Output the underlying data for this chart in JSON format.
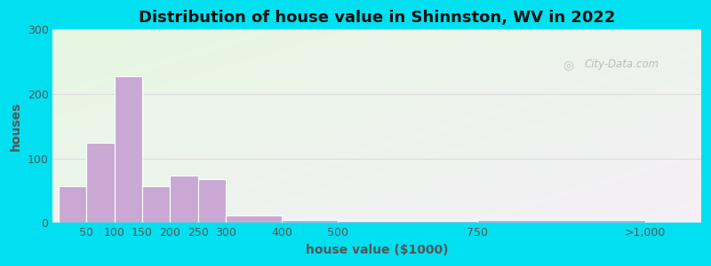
{
  "title": "Distribution of house value in Shinnston, WV in 2022",
  "xlabel": "house value ($1000)",
  "ylabel": "houses",
  "bar_color": "#c9a8d4",
  "bar_edge_color": "#ffffff",
  "background_outer": "#00e0f0",
  "ylim": [
    0,
    300
  ],
  "yticks": [
    0,
    100,
    200,
    300
  ],
  "values": [
    57,
    125,
    228,
    57,
    73,
    68,
    12,
    5,
    3,
    5
  ],
  "bar_lefts": [
    0,
    50,
    100,
    150,
    200,
    250,
    300,
    400,
    500,
    750
  ],
  "bar_widths": [
    50,
    50,
    50,
    50,
    50,
    50,
    100,
    100,
    250,
    300
  ],
  "xtick_positions": [
    50,
    100,
    150,
    200,
    250,
    300,
    400,
    500,
    750,
    1050
  ],
  "xtick_labels": [
    "50",
    "100",
    "150",
    "200",
    "250",
    "300",
    "400",
    "500",
    "750",
    ">1,000"
  ],
  "title_fontsize": 13,
  "axis_label_fontsize": 10,
  "tick_fontsize": 9,
  "label_color": "#555555",
  "watermark_text": "City-Data.com",
  "watermark_color": "#b0b8b0",
  "grid_color": "#d8d8d8",
  "xlim_left": -10,
  "xlim_right": 1150
}
